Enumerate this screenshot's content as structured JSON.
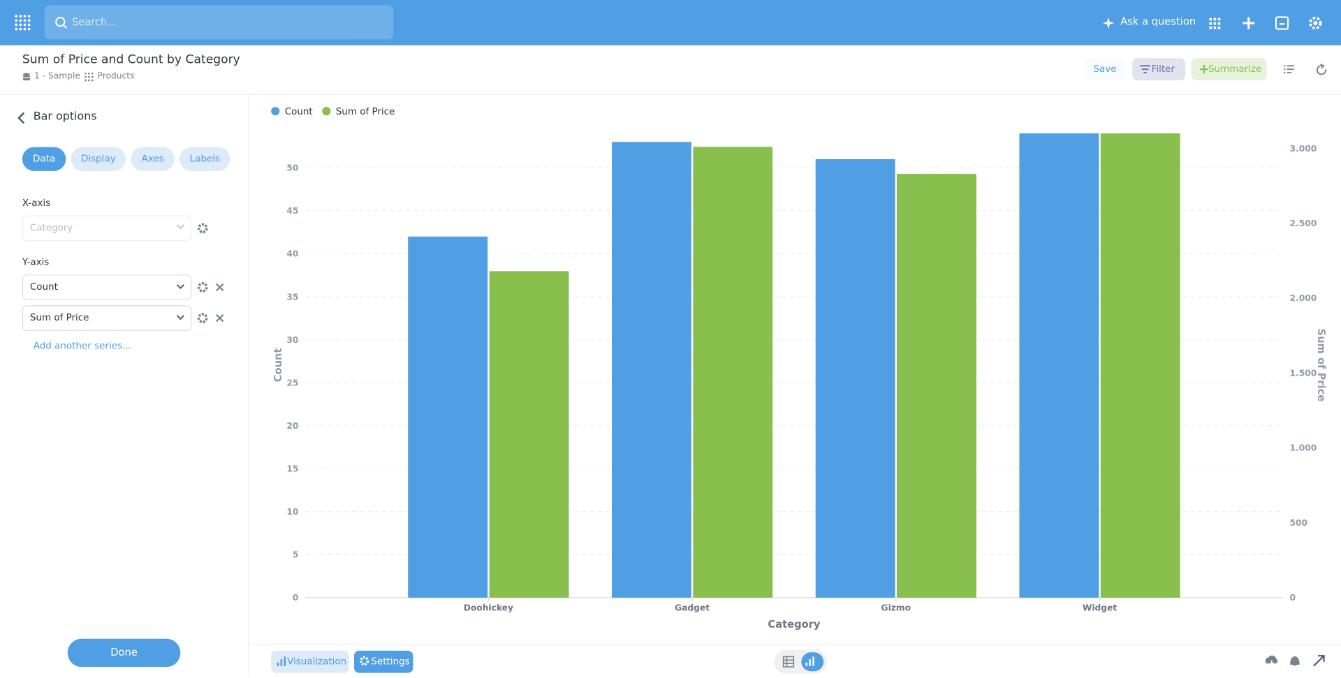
{
  "header": {
    "search_placeholder": "Search...",
    "ask": "Ask a question"
  },
  "question": {
    "title": "Sum of Price and Count by Category",
    "database": "1 - Sample",
    "table": "Products",
    "save": "Save",
    "filter": "Filter",
    "summarize": "Summarize"
  },
  "sidebar": {
    "title": "Bar options",
    "tabs": [
      "Data",
      "Display",
      "Axes",
      "Labels"
    ],
    "x_axis_label": "X-axis",
    "x_axis_field": "Category",
    "y_axis_label": "Y-axis",
    "y_axis_fields": [
      "Count",
      "Sum of Price"
    ],
    "add_series": "Add another series...",
    "done": "Done"
  },
  "footer": {
    "visualization": "Visualization",
    "settings": "Settings"
  },
  "chart_data": {
    "type": "bar",
    "categories": [
      "Doohickey",
      "Gadget",
      "Gizmo",
      "Widget"
    ],
    "series": [
      {
        "name": "Count",
        "color": "#509ee3",
        "values": [
          42,
          53,
          51,
          54
        ]
      },
      {
        "name": "Sum of Price",
        "color": "#88bf4d",
        "values": [
          2180,
          3010,
          2830,
          3100
        ],
        "axis": "y2"
      }
    ],
    "xlabel": "Category",
    "ylabel": "Count",
    "y2label": "Sum of Price",
    "ylim": [
      0,
      54
    ],
    "yticks": [
      0,
      5,
      10,
      15,
      20,
      25,
      30,
      35,
      40,
      45,
      50
    ],
    "y2lim": [
      0,
      3100
    ],
    "y2ticks": [
      0,
      500,
      {
        "value": 1000,
        "label": "1.000"
      },
      {
        "value": 1500,
        "label": "1.500"
      },
      {
        "value": 2000,
        "label": "2.000"
      },
      {
        "value": 2500,
        "label": "2.500"
      },
      {
        "value": 3000,
        "label": "3.000"
      }
    ],
    "grid": true,
    "legend": "top-left"
  }
}
